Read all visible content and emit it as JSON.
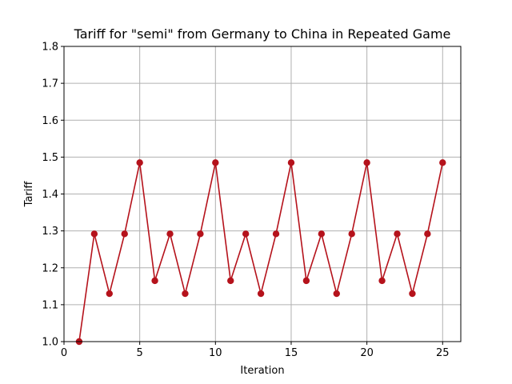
{
  "chart_data": {
    "type": "line",
    "title": "Tariff for \"semi\" from Germany to China in Repeated Game",
    "xlabel": "Iteration",
    "ylabel": "Tariff",
    "xlim": [
      0.0,
      26.2
    ],
    "ylim": [
      1.0,
      1.8
    ],
    "xticks": [
      0,
      5,
      10,
      15,
      20,
      25
    ],
    "yticks": [
      1.0,
      1.1,
      1.2,
      1.3,
      1.4,
      1.5,
      1.6,
      1.7,
      1.8
    ],
    "xtick_labels": [
      "0",
      "5",
      "10",
      "15",
      "20",
      "25"
    ],
    "ytick_labels": [
      "1.0",
      "1.1",
      "1.2",
      "1.3",
      "1.4",
      "1.5",
      "1.6",
      "1.7",
      "1.8"
    ],
    "grid": true,
    "series": [
      {
        "color": "#b5121b",
        "marker": "circle",
        "x": [
          1,
          2,
          3,
          4,
          5,
          6,
          7,
          8,
          9,
          10,
          11,
          12,
          13,
          14,
          15,
          16,
          17,
          18,
          19,
          20,
          21,
          22,
          23,
          24,
          25
        ],
        "y": [
          1.0,
          1.292,
          1.13,
          1.292,
          1.485,
          1.165,
          1.292,
          1.13,
          1.292,
          1.485,
          1.165,
          1.292,
          1.13,
          1.292,
          1.485,
          1.165,
          1.292,
          1.13,
          1.292,
          1.485,
          1.165,
          1.292,
          1.13,
          1.292,
          1.485
        ]
      }
    ]
  }
}
